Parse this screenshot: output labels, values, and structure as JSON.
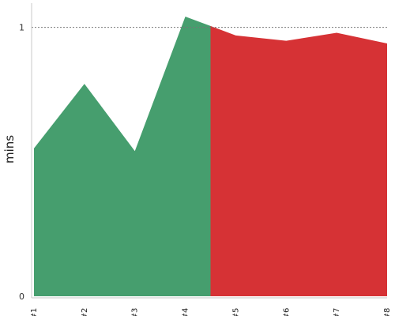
{
  "chart_data": {
    "type": "area",
    "title": "",
    "xlabel": "",
    "ylabel": "mins",
    "categories": [
      "#1",
      "#2",
      "#3",
      "#4",
      "#5",
      "#6",
      "#7",
      "#8"
    ],
    "values": [
      0.55,
      0.79,
      0.54,
      1.04,
      0.97,
      0.95,
      0.98,
      0.94
    ],
    "ylim": [
      0,
      1.09
    ],
    "yticks": [
      0,
      1
    ],
    "ytick_labels": [
      "0",
      "1"
    ],
    "reference_line": {
      "value": 1,
      "style": "dotted"
    },
    "split_at": 3.5,
    "segments": [
      {
        "from": 0,
        "to": 3.5,
        "color": "#469e6e"
      },
      {
        "from": 3.5,
        "to": 7,
        "color": "#d63235"
      }
    ],
    "grid": false,
    "legend": "none"
  }
}
